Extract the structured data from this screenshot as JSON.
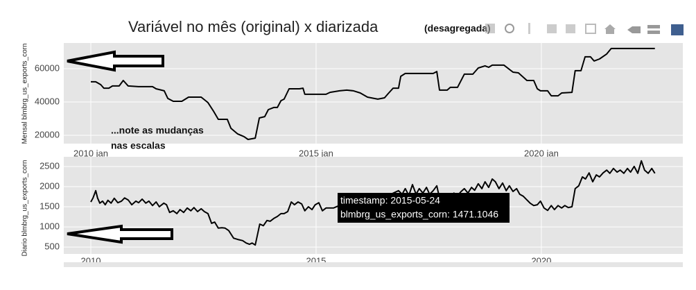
{
  "title": "Variável no mês (original) x diarizada",
  "title_suffix": "(desagregada)",
  "annotation": [
    "...note as mudanças",
    "nas escalas"
  ],
  "tooltip": [
    "timestamp: 2015-05-24",
    "blmbrg_us_exports_corn: 1471.1046"
  ],
  "chart_data": [
    {
      "type": "line",
      "y_label": "Mensal blmbrg_us_exports_corn",
      "color": "#000000",
      "grid": true,
      "xlim": [
        2009.4,
        2023.14
      ],
      "ylim": [
        15000,
        75400
      ],
      "xticks": [
        {
          "value": 2010,
          "label": "2010 jan"
        },
        {
          "value": 2015,
          "label": "2015 jan"
        },
        {
          "value": 2020,
          "label": "2020 jan"
        }
      ],
      "yticks": [
        20000,
        40000,
        60000
      ],
      "x": [
        2010.0,
        2010.11,
        2010.22,
        2010.29,
        2010.4,
        2010.48,
        2010.63,
        2010.72,
        2010.83,
        2011.06,
        2011.37,
        2011.45,
        2011.63,
        2011.71,
        2011.83,
        2012.02,
        2012.17,
        2012.45,
        2012.6,
        2012.72,
        2012.83,
        2013.03,
        2013.11,
        2013.26,
        2013.4,
        2013.49,
        2013.65,
        2013.74,
        2013.86,
        2013.94,
        2014.06,
        2014.14,
        2014.22,
        2014.29,
        2014.4,
        2014.63,
        2014.71,
        2014.75,
        2015.22,
        2015.31,
        2015.52,
        2015.68,
        2015.83,
        2015.98,
        2016.14,
        2016.37,
        2016.52,
        2016.6,
        2016.71,
        2016.83,
        2016.88,
        2016.98,
        2017.6,
        2017.68,
        2017.74,
        2017.91,
        2017.98,
        2018.14,
        2018.29,
        2018.48,
        2018.6,
        2018.75,
        2018.83,
        2018.91,
        2019.17,
        2019.37,
        2019.49,
        2019.68,
        2019.83,
        2019.91,
        2019.98,
        2020.14,
        2020.22,
        2020.37,
        2020.45,
        2020.68,
        2020.75,
        2020.88,
        2020.97,
        2021.09,
        2021.17,
        2021.29,
        2021.45,
        2021.55,
        2022.52
      ],
      "values": [
        52100,
        52100,
        50400,
        48300,
        48300,
        49600,
        49600,
        52900,
        49600,
        49200,
        49200,
        47900,
        46700,
        42100,
        40400,
        40400,
        42900,
        42900,
        39600,
        34600,
        29600,
        29600,
        24200,
        20800,
        19200,
        17500,
        18300,
        30400,
        31200,
        35400,
        36700,
        36700,
        40800,
        41700,
        47900,
        47900,
        48300,
        44600,
        44600,
        45800,
        46700,
        47100,
        46700,
        45400,
        42900,
        41700,
        42500,
        45000,
        48300,
        48300,
        55400,
        57100,
        57100,
        58300,
        47100,
        47100,
        48800,
        48800,
        56700,
        56700,
        60400,
        61700,
        60800,
        62100,
        62100,
        57900,
        57500,
        52900,
        52900,
        47900,
        46700,
        46700,
        43700,
        43700,
        45400,
        45800,
        58800,
        58800,
        67100,
        67100,
        64600,
        65800,
        68800,
        72100,
        72100
      ]
    },
    {
      "type": "line",
      "y_label": "Diario blmbrg_us_exports_corn",
      "color": "#000000",
      "grid": true,
      "xlim": [
        2009.4,
        2023.14
      ],
      "ylim": [
        330,
        2740
      ],
      "xticks": [
        2010,
        2015,
        2020
      ],
      "yticks": [
        500,
        1000,
        1500,
        2000,
        2500
      ],
      "x": [
        2010.0,
        2010.05,
        2010.11,
        2010.15,
        2010.2,
        2010.26,
        2010.32,
        2010.38,
        2010.45,
        2010.52,
        2010.6,
        2010.68,
        2010.75,
        2010.83,
        2010.91,
        2011.0,
        2011.06,
        2011.14,
        2011.22,
        2011.29,
        2011.37,
        2011.45,
        2011.52,
        2011.62,
        2011.68,
        2011.75,
        2011.83,
        2011.91,
        2011.98,
        2012.06,
        2012.14,
        2012.22,
        2012.29,
        2012.37,
        2012.45,
        2012.52,
        2012.6,
        2012.68,
        2012.75,
        2012.83,
        2012.91,
        2012.98,
        2013.06,
        2013.17,
        2013.26,
        2013.37,
        2013.45,
        2013.52,
        2013.58,
        2013.65,
        2013.71,
        2013.75,
        2013.83,
        2013.91,
        2013.98,
        2014.06,
        2014.14,
        2014.22,
        2014.29,
        2014.37,
        2014.45,
        2014.52,
        2014.6,
        2014.68,
        2014.75,
        2014.83,
        2014.91,
        2014.98,
        2015.06,
        2015.14,
        2015.22,
        2015.39,
        2015.49,
        2015.68,
        2015.91,
        2016.14,
        2016.37,
        2016.6,
        2016.83,
        2016.91,
        2016.98,
        2017.06,
        2017.14,
        2017.22,
        2017.29,
        2017.37,
        2017.45,
        2017.52,
        2017.6,
        2017.68,
        2017.74,
        2017.83,
        2017.91,
        2017.98,
        2018.06,
        2018.14,
        2018.22,
        2018.29,
        2018.37,
        2018.45,
        2018.52,
        2018.6,
        2018.68,
        2018.75,
        2018.83,
        2018.91,
        2018.98,
        2019.06,
        2019.14,
        2019.22,
        2019.29,
        2019.37,
        2019.45,
        2019.52,
        2019.6,
        2019.68,
        2019.75,
        2019.83,
        2019.91,
        2019.98,
        2020.06,
        2020.14,
        2020.22,
        2020.29,
        2020.37,
        2020.45,
        2020.52,
        2020.6,
        2020.68,
        2020.75,
        2020.83,
        2020.91,
        2020.98,
        2021.06,
        2021.14,
        2021.22,
        2021.29,
        2021.37,
        2021.45,
        2021.52,
        2021.6,
        2021.68,
        2021.75,
        2021.83,
        2021.91,
        2021.98,
        2022.06,
        2022.14,
        2022.22,
        2022.29,
        2022.37,
        2022.45,
        2022.52
      ],
      "values": [
        1620,
        1720,
        1900,
        1720,
        1590,
        1640,
        1550,
        1660,
        1590,
        1710,
        1600,
        1640,
        1720,
        1670,
        1550,
        1640,
        1600,
        1690,
        1590,
        1640,
        1530,
        1620,
        1500,
        1590,
        1550,
        1360,
        1400,
        1330,
        1430,
        1360,
        1470,
        1400,
        1480,
        1380,
        1450,
        1380,
        1330,
        1090,
        1120,
        970,
        980,
        970,
        910,
        720,
        690,
        660,
        600,
        570,
        600,
        550,
        860,
        1070,
        1030,
        1160,
        1140,
        1210,
        1260,
        1330,
        1330,
        1380,
        1620,
        1550,
        1620,
        1570,
        1400,
        1500,
        1430,
        1550,
        1600,
        1400,
        1470,
        1471.1046,
        1520,
        1600,
        1640,
        1670,
        1720,
        1780,
        1900,
        1810,
        1950,
        1780,
        2050,
        1810,
        1950,
        1840,
        1980,
        1810,
        1900,
        2020,
        1720,
        1640,
        1810,
        1740,
        1840,
        1780,
        1880,
        1950,
        1840,
        1980,
        1910,
        2070,
        1950,
        2120,
        1980,
        2190,
        2120,
        1950,
        2090,
        1900,
        2020,
        1880,
        1950,
        1810,
        1760,
        1670,
        1590,
        1530,
        1550,
        1640,
        1470,
        1410,
        1530,
        1430,
        1530,
        1470,
        1530,
        1480,
        1500,
        1950,
        2020,
        2240,
        2190,
        2340,
        2120,
        2290,
        2240,
        2340,
        2410,
        2330,
        2450,
        2360,
        2410,
        2330,
        2450,
        2360,
        2500,
        2330,
        2640,
        2410,
        2330,
        2450,
        2330
      ]
    }
  ]
}
